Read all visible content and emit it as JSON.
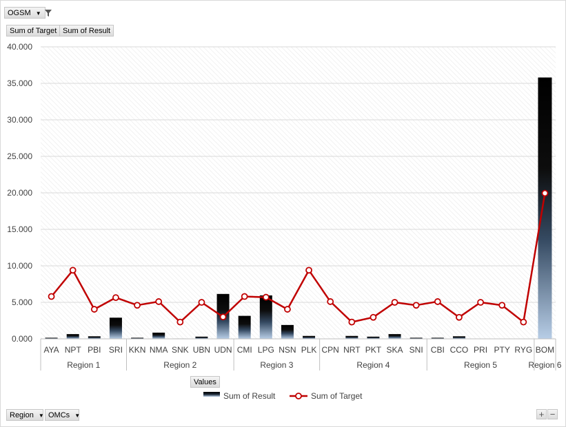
{
  "filter_button": {
    "label": "OGSM",
    "icon": "filter-icon"
  },
  "value_buttons": [
    "Sum of Target",
    "Sum of Result"
  ],
  "values_button": "Values",
  "axis_buttons": [
    "Region",
    "OMCs"
  ],
  "zoom": {
    "plus": "+",
    "minus": "−"
  },
  "chart_data": {
    "type": "bar",
    "ylim": [
      0,
      40000
    ],
    "yticks": [
      "0.000",
      "5.000",
      "10.000",
      "15.000",
      "20.000",
      "25.000",
      "30.000",
      "35.000",
      "40.000"
    ],
    "categories": [
      "AYA",
      "NPT",
      "PBI",
      "SRI",
      "KKN",
      "NMA",
      "SNK",
      "UBN",
      "UDN",
      "CMI",
      "LPG",
      "NSN",
      "PLK",
      "CPN",
      "NRT",
      "PKT",
      "SKA",
      "SNI",
      "CBI",
      "CCO",
      "PRI",
      "PTY",
      "RYG",
      "BOM"
    ],
    "groups": [
      {
        "name": "Region 1",
        "count": 4
      },
      {
        "name": "Region 2",
        "count": 5
      },
      {
        "name": "Region 3",
        "count": 4
      },
      {
        "name": "Region 4",
        "count": 5
      },
      {
        "name": "Region 5",
        "count": 5
      },
      {
        "name": "Region 6",
        "count": 1
      }
    ],
    "series": [
      {
        "name": "Sum of Result",
        "type": "bar",
        "values": [
          150,
          650,
          350,
          2900,
          150,
          850,
          50,
          300,
          6150,
          3150,
          5950,
          1900,
          400,
          null,
          400,
          300,
          650,
          150,
          150,
          350,
          null,
          null,
          null,
          35800
        ]
      },
      {
        "name": "Sum of Target",
        "type": "line",
        "color": "#c00000",
        "values": [
          5800,
          9400,
          4050,
          5650,
          4600,
          5100,
          2300,
          5000,
          3000,
          5800,
          5700,
          4050,
          9400,
          5100,
          2300,
          2950,
          5000,
          4600,
          5100,
          2950,
          5000,
          4600,
          2300,
          19950
        ]
      }
    ],
    "legend": "bottom",
    "grid": true
  }
}
